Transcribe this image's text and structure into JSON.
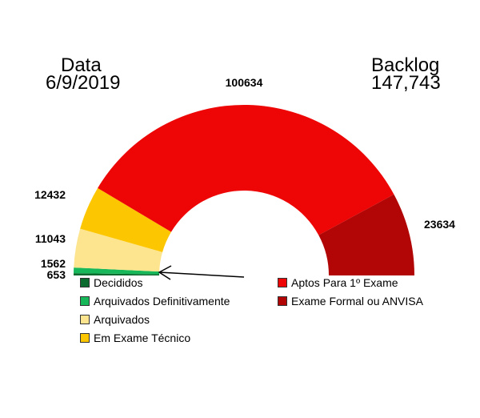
{
  "header": {
    "date_label": "Data",
    "date_value": "6/9/2019",
    "backlog_label": "Backlog",
    "backlog_value": "147,743"
  },
  "chart_data": {
    "type": "pie",
    "variant": "half-donut",
    "categories": [
      "Decididos",
      "Arquivados Definitivamente",
      "Arquivados",
      "Em Exame Técnico",
      "Aptos Para 1º Exame",
      "Exame Formal ou ANVISA"
    ],
    "values": [
      653,
      1562,
      11043,
      12432,
      100634,
      23634
    ],
    "data_labels": [
      "653",
      "1562",
      "11043",
      "12432",
      "100634",
      "23634"
    ],
    "colors": [
      "#0b6b2e",
      "#17b85a",
      "#fde58f",
      "#fcc600",
      "#ee0505",
      "#b20505"
    ],
    "legend_placement": "bottom"
  }
}
